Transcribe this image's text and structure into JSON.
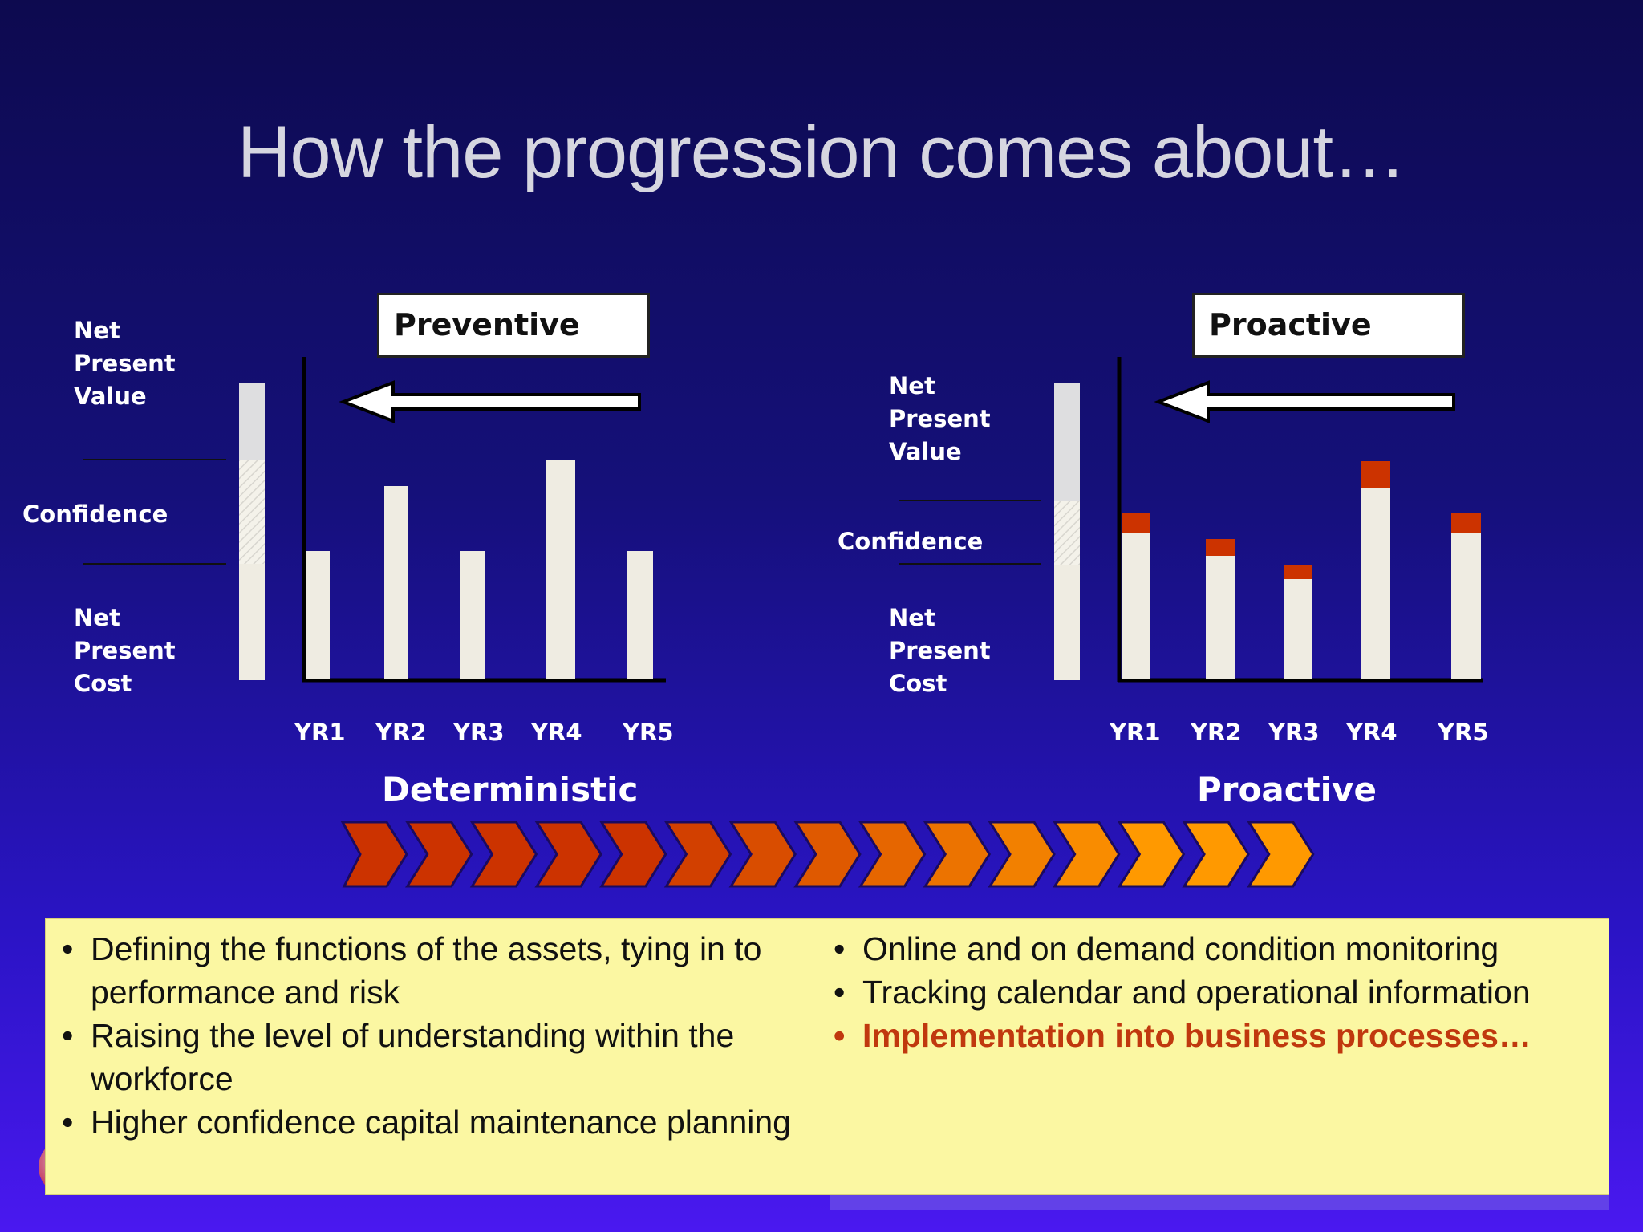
{
  "title": "How the progression comes about…",
  "left_panel": {
    "box_label": "Preventive",
    "npv_label": "Net\nPresent\nValue",
    "confidence_label": "Confidence",
    "npc_label": "Net\nPresent\nCost",
    "years": [
      "YR1",
      "YR2",
      "YR3",
      "YR4",
      "YR5"
    ]
  },
  "right_panel": {
    "box_label": "Proactive",
    "npv_label": "Net\nPresent\nValue",
    "confidence_label": "Confidence",
    "npc_label": "Net\nPresent\nCost",
    "years": [
      "YR1",
      "YR2",
      "YR3",
      "YR4",
      "YR5"
    ]
  },
  "progression": {
    "start_label": "Deterministic",
    "end_label": "Proactive",
    "chevron_count": 15
  },
  "bullets_left": [
    "Defining the functions of the assets, tying in to performance and risk",
    "Raising the level of understanding within the workforce",
    "Higher confidence capital maintenance planning"
  ],
  "bullets_right": [
    {
      "text": "Online and on demand condition monitoring",
      "highlight": false
    },
    {
      "text": "Tracking calendar and operational information",
      "highlight": false
    },
    {
      "text": "Implementation into business processes…",
      "highlight": true
    }
  ],
  "colors": {
    "bar": "#efece2",
    "bar_top": "#cc3300",
    "chevron_dark": "#cc3300",
    "chevron_light": "#ff9900",
    "highlight_text": "#c0380e"
  }
}
